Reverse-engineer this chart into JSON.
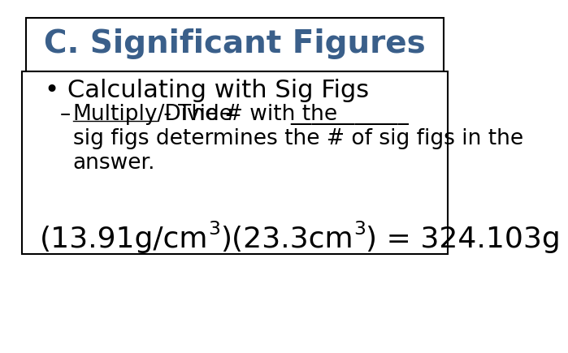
{
  "title": "C. Significant Figures",
  "title_color": "#3A5F8A",
  "bg_color": "#FFFFFF",
  "bullet_text": "Calculating with Sig Figs",
  "sub_line1_prefix": "– ",
  "sub_line1_underline": "Multiply/Divide",
  "sub_line1_rest": " - The # with the ",
  "sub_line1_blank": "___________",
  "sub_line2": "sig figs determines the # of sig figs in the",
  "sub_line3": "answer.",
  "formula_line": "(13.91g/cm",
  "formula_sup1": "3",
  "formula_mid": ")(23.3cm",
  "formula_sup2": "3",
  "formula_end": ") = 324.103g",
  "title_fontsize": 28,
  "bullet_fontsize": 22,
  "sub_fontsize": 19,
  "formula_fontsize": 26,
  "title_box_color": "#FFFFFF",
  "title_box_edge": "#000000",
  "content_box_edge": "#000000"
}
